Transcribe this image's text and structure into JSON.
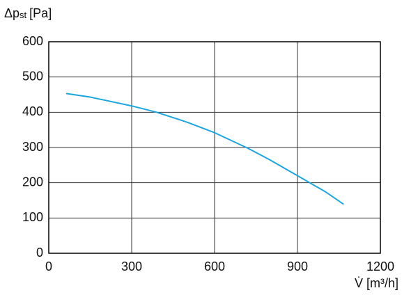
{
  "chart_data": {
    "type": "line",
    "ylabel_symbol": "Δp",
    "ylabel_subscript": "st",
    "ylabel_unit": "[Pa]",
    "xlabel": "V̇ [m³/h]",
    "x": [
      65,
      150,
      300,
      390,
      500,
      600,
      720,
      800,
      900,
      1000,
      1065
    ],
    "series": [
      {
        "color": "#1ba6df",
        "values": [
          453,
          443,
          418,
          400,
          372,
          342,
          298,
          265,
          220,
          175,
          140
        ]
      }
    ],
    "xlim": [
      0,
      1200
    ],
    "xticks": [
      0,
      300,
      600,
      900,
      1200
    ],
    "ylim": [
      0,
      600
    ],
    "yticks": [
      0,
      100,
      200,
      300,
      400,
      500,
      600
    ],
    "grid": true
  }
}
